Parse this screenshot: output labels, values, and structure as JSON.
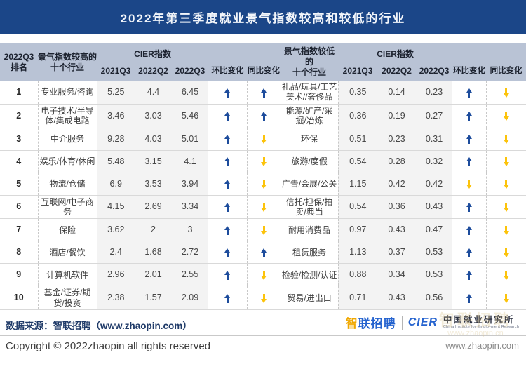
{
  "title": "2022年第三季度就业景气指数较高和较低的行业",
  "colors": {
    "title_bar": "#1b4688",
    "header_bg": "#b9c3d5",
    "up_arrow": "#1d4c9c",
    "down_arrow": "#fcc30b",
    "number_band": "#f3f3f3"
  },
  "table": {
    "rank_header": "2022Q3\n排名",
    "high_header": "景气指数较高的\n十个行业",
    "low_header": "景气指数较低的\n十个行业",
    "cier_header": "CIER指数",
    "quarter_headers": [
      "2021Q3",
      "2022Q2",
      "2022Q3"
    ],
    "mom_header": "环比变化",
    "yoy_header": "同比变化"
  },
  "chart_data": [
    {
      "type": "table",
      "title": "景气指数较高的十个行业",
      "columns": [
        "2022Q3排名",
        "行业",
        "CIER指数 2021Q3",
        "CIER指数 2022Q2",
        "CIER指数 2022Q3",
        "环比变化",
        "同比变化"
      ],
      "rows": [
        [
          "1",
          "专业服务/咨询",
          "5.25",
          "4.4",
          "6.45",
          "up",
          "up"
        ],
        [
          "2",
          "电子技术/半导体/集成电路",
          "3.46",
          "3.03",
          "5.46",
          "up",
          "up"
        ],
        [
          "3",
          "中介服务",
          "9.28",
          "4.03",
          "5.01",
          "up",
          "down"
        ],
        [
          "4",
          "娱乐/体育/休闲",
          "5.48",
          "3.15",
          "4.1",
          "up",
          "down"
        ],
        [
          "5",
          "物流/仓储",
          "6.9",
          "3.53",
          "3.94",
          "up",
          "down"
        ],
        [
          "6",
          "互联网/电子商务",
          "4.15",
          "2.69",
          "3.34",
          "up",
          "down"
        ],
        [
          "7",
          "保险",
          "3.62",
          "2",
          "3",
          "up",
          "down"
        ],
        [
          "8",
          "酒店/餐饮",
          "2.4",
          "1.68",
          "2.72",
          "up",
          "up"
        ],
        [
          "9",
          "计算机软件",
          "2.96",
          "2.01",
          "2.55",
          "up",
          "down"
        ],
        [
          "10",
          "基金/证券/期货/投资",
          "2.38",
          "1.57",
          "2.09",
          "up",
          "down"
        ]
      ]
    },
    {
      "type": "table",
      "title": "景气指数较低的十个行业",
      "columns": [
        "行业",
        "CIER指数 2021Q3",
        "CIER指数 2022Q2",
        "CIER指数 2022Q3",
        "环比变化",
        "同比变化"
      ],
      "rows": [
        [
          "礼品/玩具/工艺美术//奢侈品",
          "0.35",
          "0.14",
          "0.23",
          "up",
          "down"
        ],
        [
          "能源/矿产/采掘/冶炼",
          "0.36",
          "0.19",
          "0.27",
          "up",
          "down"
        ],
        [
          "环保",
          "0.51",
          "0.23",
          "0.31",
          "up",
          "down"
        ],
        [
          "旅游/度假",
          "0.54",
          "0.28",
          "0.32",
          "up",
          "down"
        ],
        [
          "广告/会展/公关",
          "1.15",
          "0.42",
          "0.42",
          "down",
          "down"
        ],
        [
          "信托/担保/拍卖/典当",
          "0.54",
          "0.36",
          "0.43",
          "up",
          "down"
        ],
        [
          "耐用消费品",
          "0.97",
          "0.43",
          "0.47",
          "up",
          "down"
        ],
        [
          "租赁服务",
          "1.13",
          "0.37",
          "0.53",
          "up",
          "down"
        ],
        [
          "检验/检测/认证",
          "0.88",
          "0.34",
          "0.53",
          "up",
          "down"
        ],
        [
          "贸易/进出口",
          "0.71",
          "0.43",
          "0.56",
          "up",
          "down"
        ]
      ]
    }
  ],
  "footer": {
    "source": "数据来源：智联招聘（www.zhaopin.com）",
    "copyright": "Copyright © 2022zhaopin all rights reserved",
    "website": "www.zhaopin.com",
    "logo_zhaopin_accent": "智",
    "logo_zhaopin_rest": "联招聘",
    "logo_cier": "CIER",
    "logo_institute": "中国就业研究所",
    "logo_institute_en": "China Institute for Employment Research",
    "watermark_line1": "智联招聘",
    "watermark_line2": "www.zhaopin.cn"
  }
}
